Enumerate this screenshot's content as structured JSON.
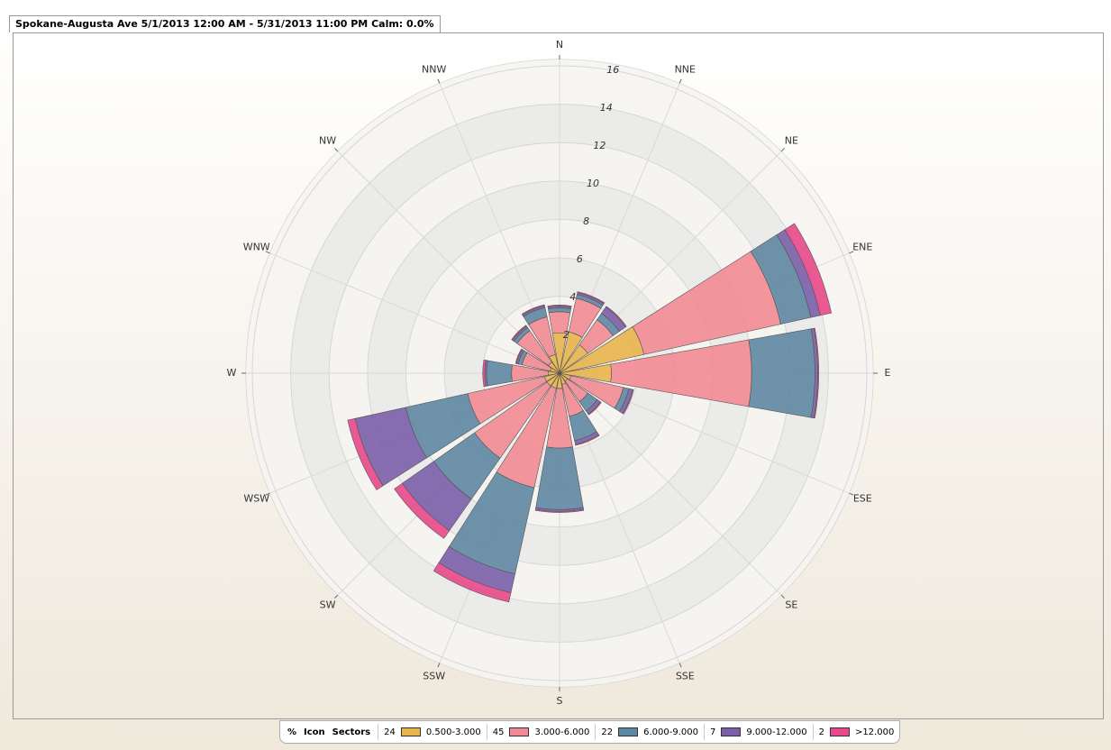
{
  "chart_data": {
    "type": "windrose",
    "title": "Spokane-Augusta Ave 5/1/2013 12:00 AM - 5/31/2013 11:00 PM Calm: 0.0%",
    "legend_headers": [
      "%",
      "Icon",
      "Sectors"
    ],
    "directions": [
      "N",
      "NNE",
      "NE",
      "ENE",
      "E",
      "ESE",
      "SE",
      "SSE",
      "S",
      "SSW",
      "SW",
      "WSW",
      "W",
      "WNW",
      "NW",
      "NNW"
    ],
    "rlim": [
      0,
      16
    ],
    "rticks": [
      2,
      4,
      6,
      8,
      10,
      12,
      14,
      16
    ],
    "series": [
      {
        "name": "0.500-3.000",
        "percent": 24,
        "color": "#e9b54c",
        "values": [
          2.1,
          2.2,
          1.8,
          4.5,
          2.7,
          0.6,
          0.5,
          0.6,
          0.8,
          0.8,
          0.8,
          0.8,
          0.6,
          0.5,
          0.7,
          1.0
        ]
      },
      {
        "name": "3.000-6.000",
        "percent": 45,
        "color": "#f28b93",
        "values": [
          1.1,
          1.8,
          1.6,
          7.3,
          7.3,
          2.8,
          1.3,
          1.7,
          3.1,
          5.3,
          4.6,
          4.1,
          1.9,
          1.5,
          2.0,
          2.0
        ]
      },
      {
        "name": "6.000-9.000",
        "percent": 22,
        "color": "#5e87a1",
        "values": [
          0.2,
          0.2,
          0.4,
          1.6,
          3.3,
          0.3,
          0.6,
          1.3,
          3.2,
          4.6,
          2.6,
          3.3,
          1.3,
          0.2,
          0.2,
          0.5
        ]
      },
      {
        "name": "9.000-12.000",
        "percent": 7,
        "color": "#7b5fa9",
        "values": [
          0.1,
          0.1,
          0.4,
          0.5,
          0.15,
          0.2,
          0.2,
          0.2,
          0.1,
          1.0,
          2.0,
          2.7,
          0.1,
          0.1,
          0.1,
          0.1
        ]
      },
      {
        "name": ">12.000",
        "percent": 2,
        "color": "#e8498b",
        "values": [
          0.05,
          0.05,
          0.05,
          0.6,
          0.05,
          0.05,
          0.05,
          0.05,
          0.05,
          0.5,
          0.5,
          0.4,
          0.1,
          0.05,
          0.05,
          0.05
        ]
      }
    ]
  }
}
